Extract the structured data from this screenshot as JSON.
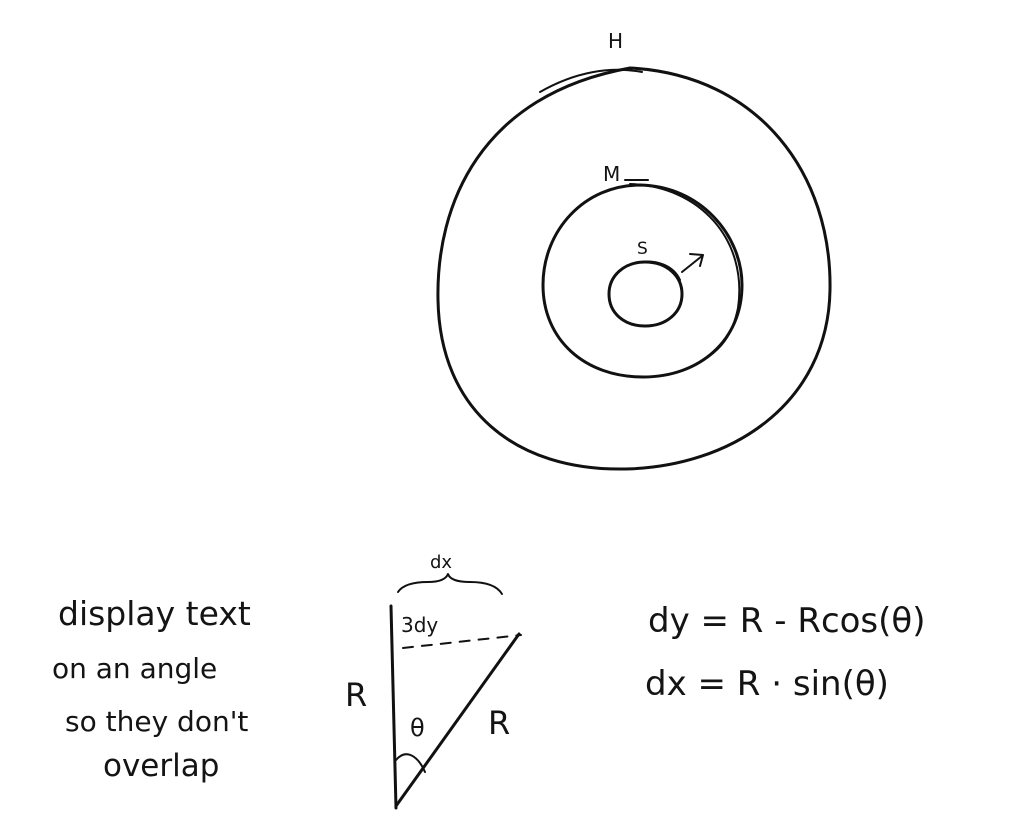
{
  "colors": {
    "paper": "#ffffff",
    "ink": "#111111"
  },
  "rings": {
    "outer_label": "H",
    "middle_label": "M",
    "inner_label": "S"
  },
  "note": {
    "line1": "display text",
    "line2": "on an angle",
    "line3": "so they don't",
    "line4": "overlap"
  },
  "triangle": {
    "top_label": "dx",
    "corner_label": "3dy",
    "left_side_label": "R",
    "hypotenuse_label": "R",
    "angle_label": "θ"
  },
  "equations": {
    "dy": "dy = R - Rcos(θ)",
    "dx": "dx = R · sin(θ)"
  }
}
